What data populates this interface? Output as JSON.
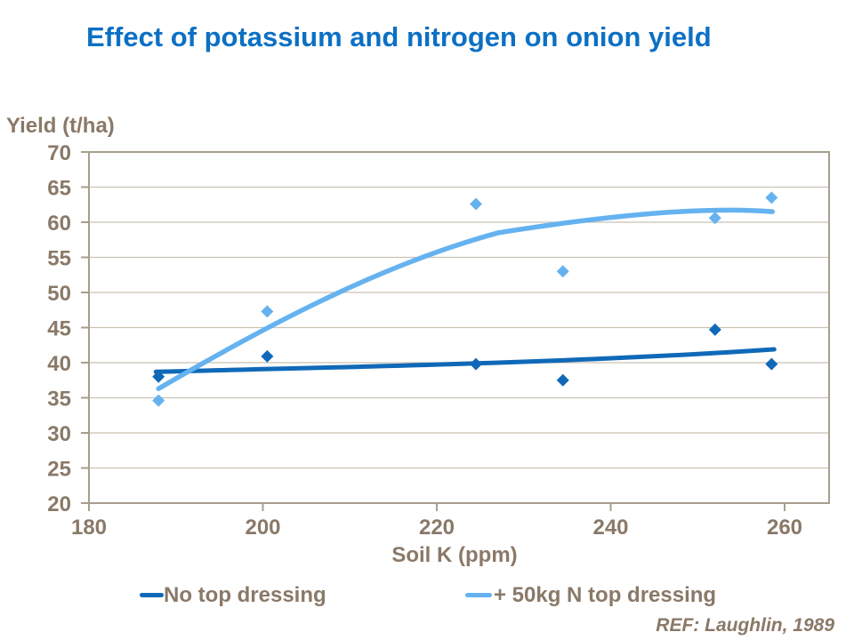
{
  "title": {
    "text": "Effect of potassium and nitrogen on onion yield",
    "color": "#0c70c4"
  },
  "ref": {
    "text": "REF: Laughlin, 1989"
  },
  "chart_data": {
    "type": "scatter",
    "title": "Effect of potassium and nitrogen on onion yield",
    "xlabel": "Soil K (ppm)",
    "ylabel": "Yield (t/ha)",
    "xlim": [
      180,
      265
    ],
    "ylim": [
      20,
      70
    ],
    "xticks": [
      180,
      200,
      220,
      240,
      260
    ],
    "yticks": [
      20,
      25,
      30,
      35,
      40,
      45,
      50,
      55,
      60,
      65,
      70
    ],
    "grid": "horizontal-only",
    "legend_position": "bottom",
    "annotation": "REF: Laughlin, 1989",
    "series": [
      {
        "name": "No top dressing",
        "color": "#1069b8",
        "marker": "diamond",
        "points": [
          [
            188,
            38.0
          ],
          [
            200.5,
            40.9
          ],
          [
            224.5,
            39.8
          ],
          [
            234.5,
            37.5
          ],
          [
            252,
            44.7
          ],
          [
            258.5,
            39.8
          ]
        ],
        "trend_control_points": [
          [
            187.7,
            38.7
          ],
          [
            210.7,
            39.4
          ],
          [
            236.3,
            40.0
          ],
          [
            258.8,
            41.9
          ]
        ]
      },
      {
        "name": "+ 50kg N top dressing",
        "color": "#65b2f0",
        "marker": "diamond",
        "points": [
          [
            188,
            34.6
          ],
          [
            200.5,
            47.3
          ],
          [
            224.5,
            62.6
          ],
          [
            234.5,
            53.0
          ],
          [
            252,
            60.6
          ],
          [
            258.5,
            63.5
          ]
        ],
        "trend_control_points": [
          [
            188,
            36.3
          ],
          [
            198.4,
            43.8
          ],
          [
            212.7,
            53.7
          ],
          [
            227.1,
            58.5
          ],
          [
            239.3,
            60.9
          ],
          [
            250.6,
            62.3
          ],
          [
            258.6,
            61.5
          ]
        ]
      }
    ],
    "styles": {
      "background": "#ffffff",
      "axis_text_color": "#8a7968",
      "grid_color": "#cbc2b5",
      "axis_line_color": "#a79e90"
    }
  }
}
